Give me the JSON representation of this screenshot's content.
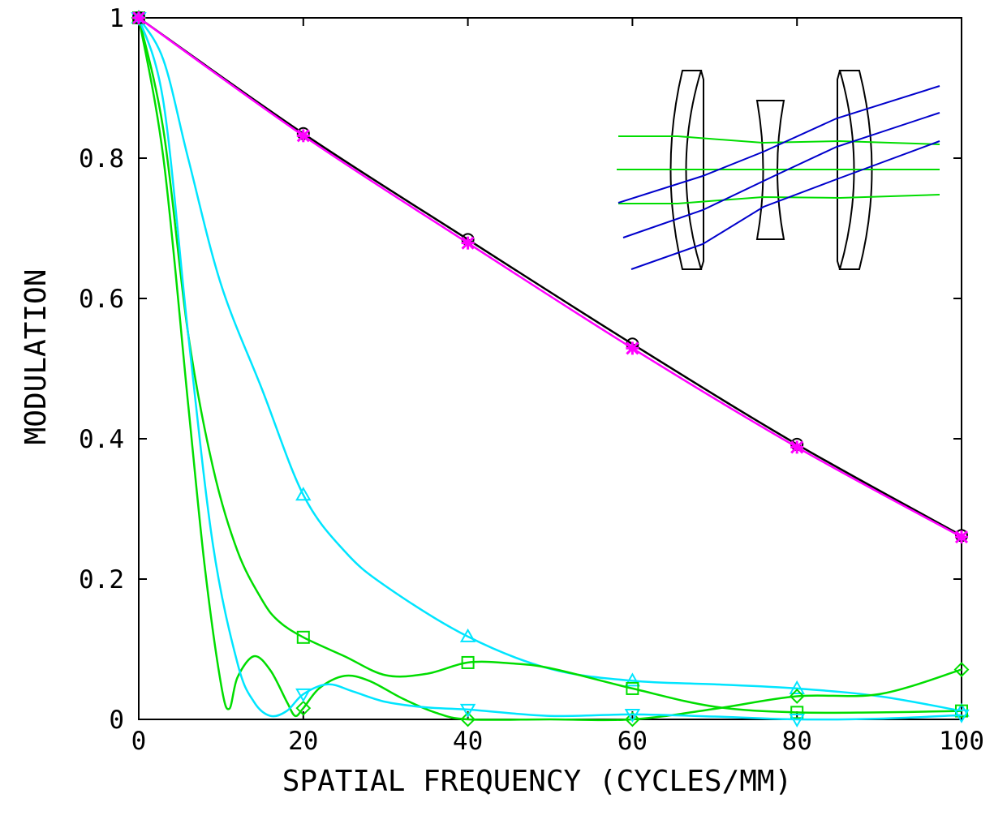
{
  "chart_data": {
    "type": "line",
    "title": "",
    "xlabel": "SPATIAL FREQUENCY (CYCLES/MM)",
    "ylabel": "MODULATION",
    "xlim": [
      0,
      100
    ],
    "ylim": [
      0,
      1
    ],
    "x_ticks": [
      0,
      20,
      40,
      60,
      80,
      100
    ],
    "y_ticks": [
      0,
      0.2,
      0.4,
      0.6,
      0.8,
      1
    ],
    "x_tick_labels": [
      "0",
      "20",
      "40",
      "60",
      "80",
      "100"
    ],
    "y_tick_labels": [
      "0",
      "0.2",
      "0.4",
      "0.6",
      "0.8",
      "1"
    ],
    "grid": false,
    "legend": "none",
    "inset": "lens layout diagram with traced rays (top-right)",
    "series": [
      {
        "marker": "circle",
        "color": "#000000",
        "x": [
          0,
          20,
          40,
          60,
          80,
          100
        ],
        "y": [
          1.0,
          0.835,
          0.684,
          0.535,
          0.392,
          0.262
        ]
      },
      {
        "marker": "star",
        "color": "#ff00ff",
        "x": [
          0,
          20,
          40,
          60,
          80,
          100
        ],
        "y": [
          1.0,
          0.832,
          0.679,
          0.529,
          0.388,
          0.26
        ]
      },
      {
        "marker": "triangle-up",
        "color": "#00e5ff",
        "x": [
          0,
          3,
          6,
          10,
          15,
          20,
          25,
          30,
          40,
          50,
          60,
          70,
          80,
          90,
          100
        ],
        "y": [
          1.0,
          0.94,
          0.8,
          0.62,
          0.47,
          0.32,
          0.24,
          0.19,
          0.118,
          0.072,
          0.055,
          0.05,
          0.044,
          0.033,
          0.012
        ]
      },
      {
        "marker": "square",
        "color": "#00dd00",
        "x": [
          0,
          3,
          6,
          9,
          12,
          15,
          17,
          20,
          25,
          30,
          35,
          40,
          45,
          50,
          60,
          70,
          80,
          90,
          100
        ],
        "y": [
          1.0,
          0.84,
          0.55,
          0.36,
          0.24,
          0.17,
          0.14,
          0.117,
          0.09,
          0.063,
          0.065,
          0.081,
          0.08,
          0.073,
          0.044,
          0.018,
          0.01,
          0.01,
          0.012
        ]
      },
      {
        "marker": "diamond",
        "color": "#00dd00",
        "x": [
          0,
          3,
          6,
          8,
          10,
          11,
          12,
          14,
          16,
          18,
          19,
          20,
          22,
          25,
          28,
          32,
          36,
          40,
          50,
          60,
          70,
          80,
          90,
          100
        ],
        "y": [
          1.0,
          0.8,
          0.45,
          0.22,
          0.05,
          0.015,
          0.06,
          0.09,
          0.07,
          0.025,
          0.005,
          0.016,
          0.045,
          0.062,
          0.055,
          0.03,
          0.01,
          0.0,
          0.0,
          0.0,
          0.015,
          0.033,
          0.036,
          0.071
        ]
      },
      {
        "marker": "triangle-down",
        "color": "#00e5ff",
        "x": [
          0,
          3,
          6,
          9,
          12,
          14,
          16,
          18,
          20,
          23,
          26,
          30,
          35,
          40,
          50,
          60,
          70,
          80,
          90,
          100
        ],
        "y": [
          1.0,
          0.88,
          0.55,
          0.25,
          0.08,
          0.025,
          0.005,
          0.012,
          0.036,
          0.05,
          0.04,
          0.025,
          0.017,
          0.014,
          0.005,
          0.007,
          0.004,
          0.0,
          0.001,
          0.006
        ]
      }
    ]
  }
}
